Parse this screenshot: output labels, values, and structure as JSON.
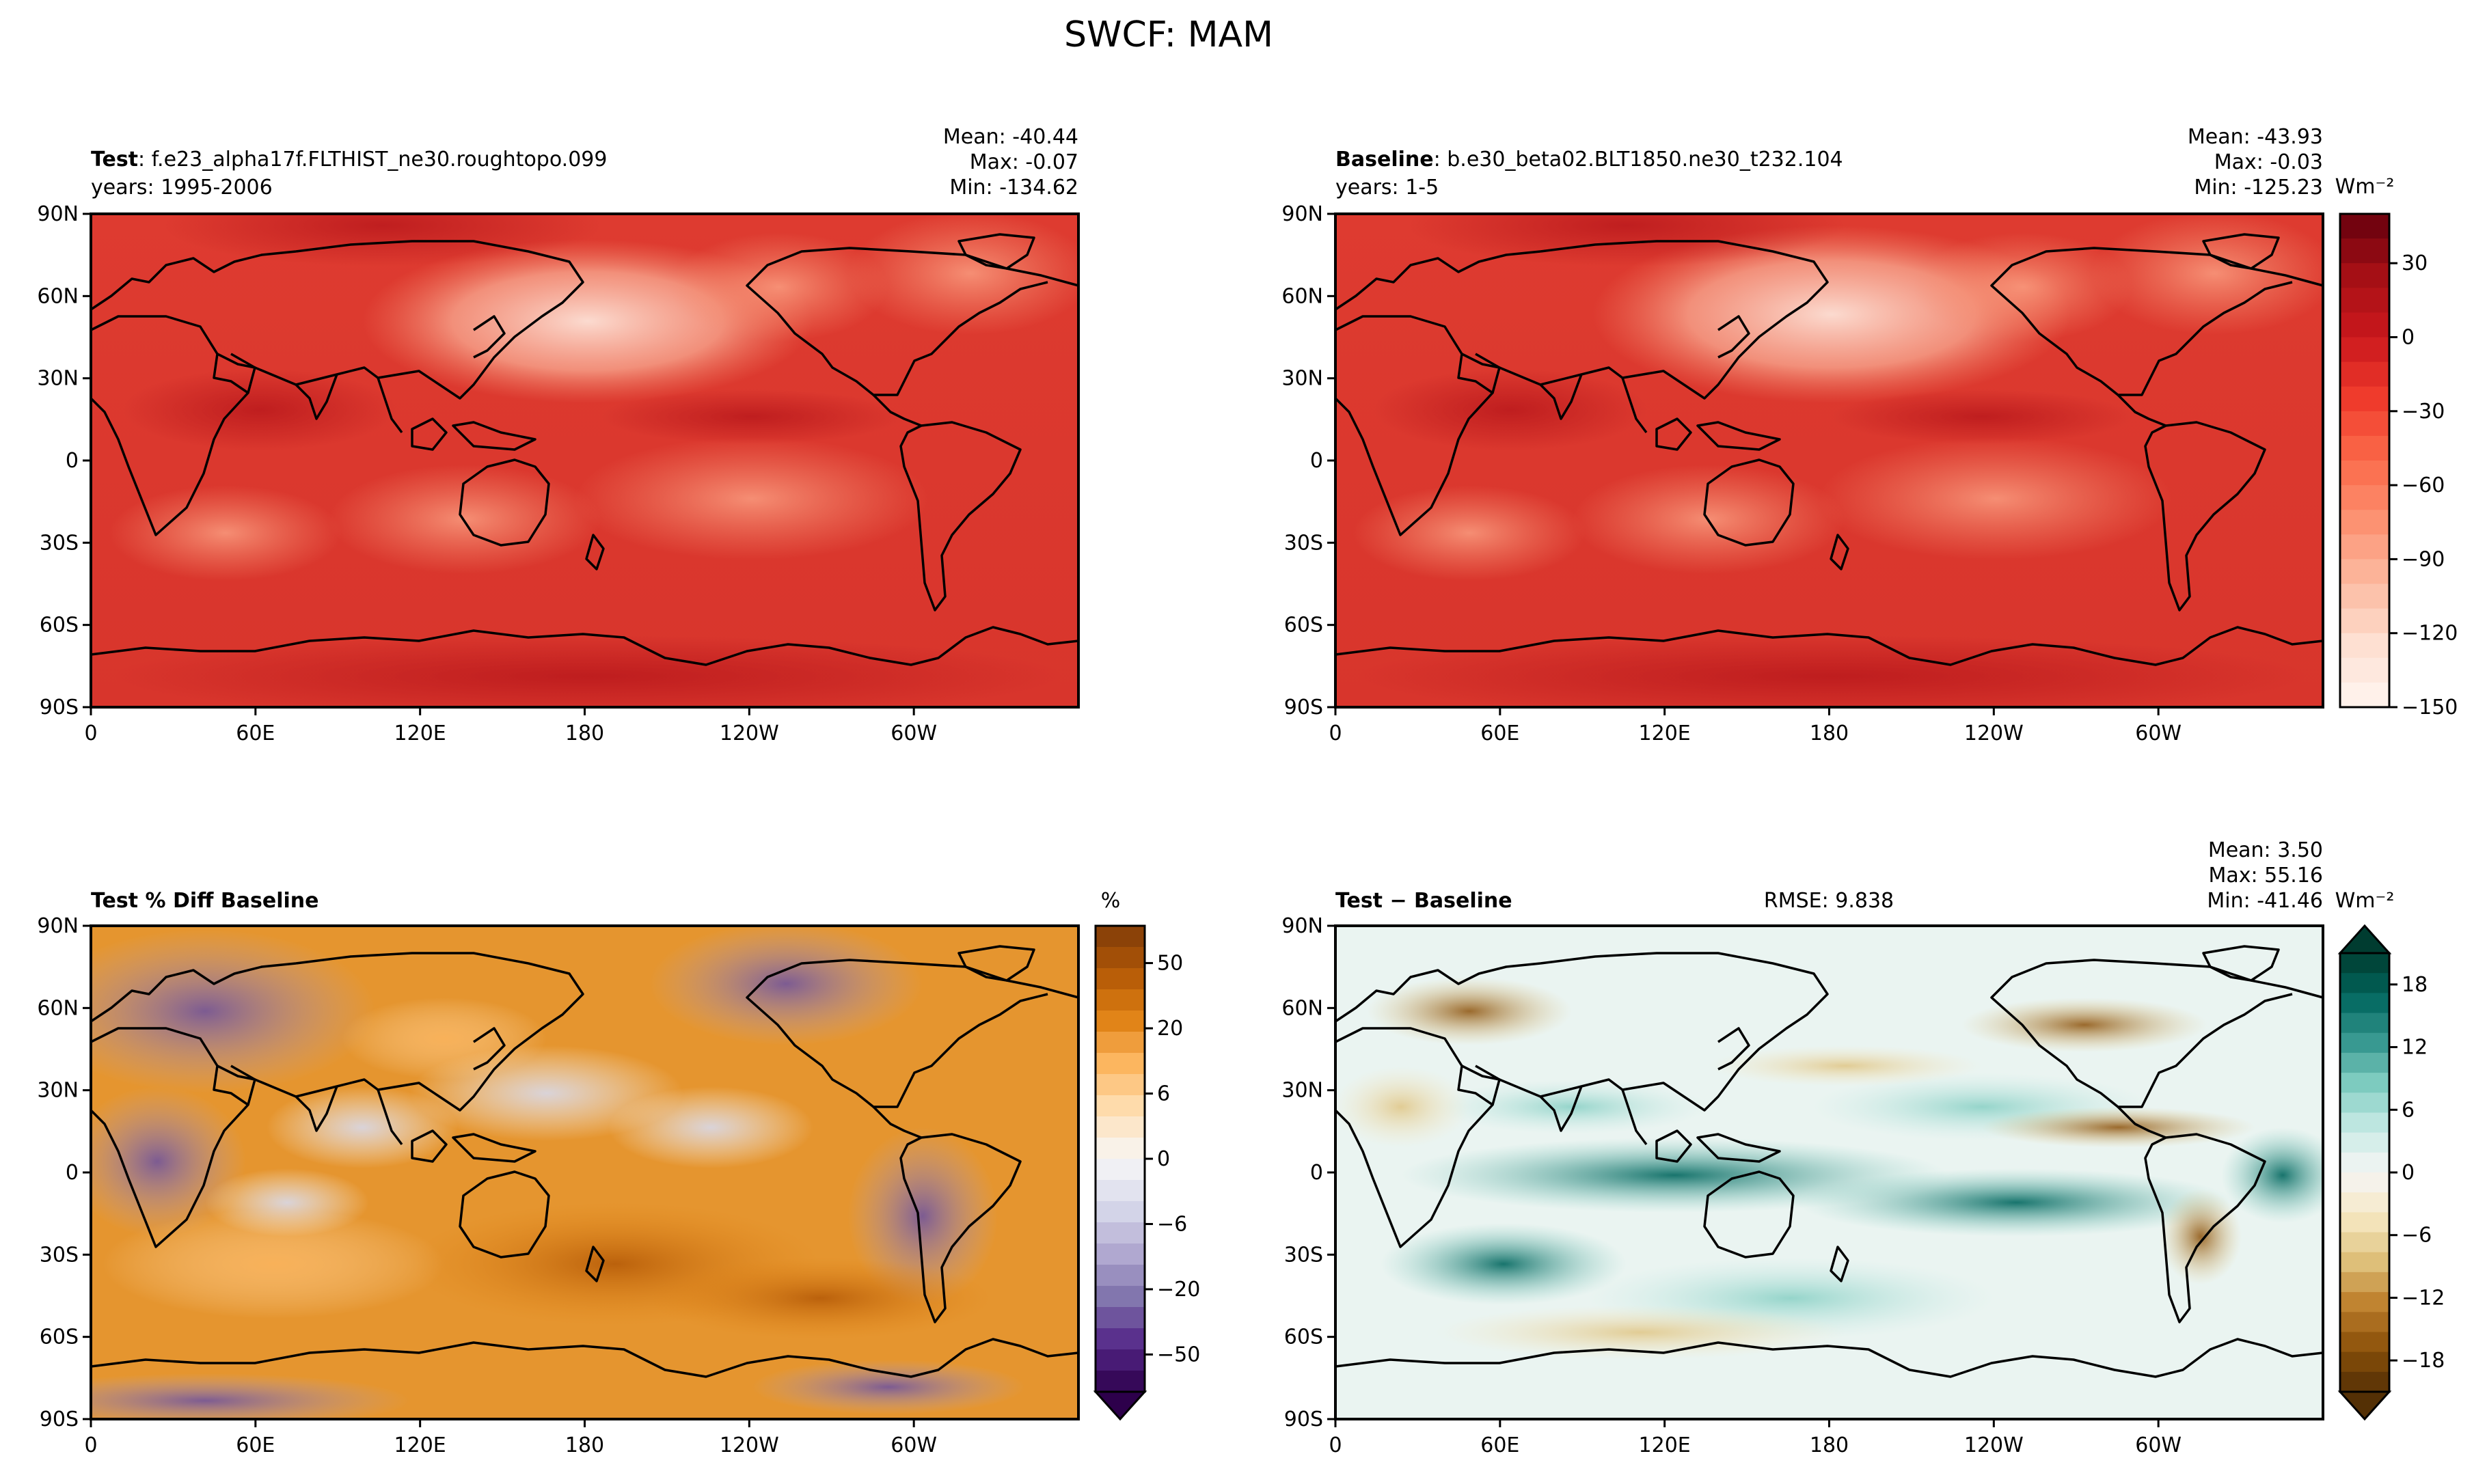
{
  "figure": {
    "title": "SWCF: MAM"
  },
  "chart_data": [
    {
      "type": "heatmap",
      "panel": "test",
      "label_bold": "Test",
      "label_rest": ": f.e23_alpha17f.FLTHIST_ne30.roughtopo.099",
      "subtitle": "years: 1995-2006",
      "stats": [
        "Mean: -40.44",
        "Max: -0.07",
        "Min: -134.62"
      ],
      "xticks": [
        "0",
        "60E",
        "120E",
        "180",
        "120W",
        "60W"
      ],
      "yticks": [
        "90N",
        "60N",
        "30N",
        "0",
        "30S",
        "60S",
        "90S"
      ],
      "colormap": "Reds"
    },
    {
      "type": "heatmap",
      "panel": "baseline",
      "label_bold": "Baseline",
      "label_rest": ": b.e30_beta02.BLT1850.ne30_t232.104",
      "subtitle": "years: 1-5",
      "stats": [
        "Mean: -43.93",
        "Max: -0.03",
        "Min: -125.23"
      ],
      "xticks": [
        "0",
        "60E",
        "120E",
        "180",
        "120W",
        "60W"
      ],
      "yticks": [
        "90N",
        "60N",
        "30N",
        "0",
        "30S",
        "60S",
        "90S"
      ],
      "colormap": "Reds",
      "colorbar": {
        "unit": "Wm⁻²",
        "range": [
          -150,
          50
        ],
        "ticks": [
          "30",
          "0",
          "−30",
          "−60",
          "−90",
          "−120",
          "−150"
        ]
      }
    },
    {
      "type": "heatmap",
      "panel": "pct_diff",
      "label_bold": "Test % Diff Baseline",
      "label_rest": "",
      "xticks": [
        "0",
        "60E",
        "120E",
        "180",
        "120W",
        "60W"
      ],
      "yticks": [
        "90N",
        "60N",
        "30N",
        "0",
        "30S",
        "60S",
        "90S"
      ],
      "colormap": "PuOr",
      "colorbar": {
        "unit": "%",
        "ticks": [
          "50",
          "20",
          "6",
          "0",
          "−6",
          "−20",
          "−50"
        ]
      }
    },
    {
      "type": "heatmap",
      "panel": "diff",
      "label_bold": "Test",
      "label_rest": " − Baseline",
      "rmse": "RMSE: 9.838",
      "stats": [
        "Mean:  3.50",
        "Max: 55.16",
        "Min: -41.46"
      ],
      "xticks": [
        "0",
        "60E",
        "120E",
        "180",
        "120W",
        "60W"
      ],
      "yticks": [
        "90N",
        "60N",
        "30N",
        "0",
        "30S",
        "60S",
        "90S"
      ],
      "colormap": "BrBG",
      "colorbar": {
        "unit": "Wm⁻²",
        "range": [
          -21,
          21
        ],
        "ticks": [
          "18",
          "12",
          "6",
          "0",
          "−6",
          "−12",
          "−18"
        ]
      }
    }
  ],
  "colors": {
    "reds": [
      "#fff5f0",
      "#fee0d2",
      "#fcbba1",
      "#fc9272",
      "#fb6a4a",
      "#ef3b2c",
      "#cb181d",
      "#a50f15",
      "#67000d"
    ],
    "puor": [
      "#2d004b",
      "#542788",
      "#8073ac",
      "#b2abd2",
      "#d8daeb",
      "#f7f7f7",
      "#fee0b6",
      "#fdb863",
      "#e08214",
      "#b35806",
      "#7f3b08"
    ],
    "brbg": [
      "#543005",
      "#8c510a",
      "#bf812d",
      "#dfc27d",
      "#f6e8c3",
      "#f5f5f5",
      "#c7eae5",
      "#80cdc1",
      "#35978f",
      "#01665e",
      "#003c30"
    ]
  }
}
